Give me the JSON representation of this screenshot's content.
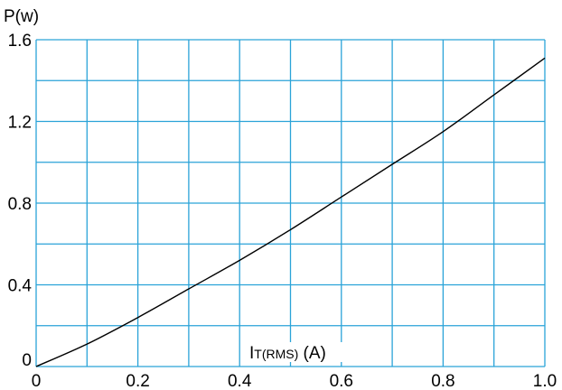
{
  "chart_data": {
    "type": "line",
    "title": "",
    "ylabel": "P(w)",
    "xlabel": {
      "main": "I",
      "sub": "T(RMS)",
      "unit": " (A)"
    },
    "xlim": [
      0,
      1.0
    ],
    "ylim": [
      0,
      1.6
    ],
    "xticks": [
      0,
      0.2,
      0.4,
      0.6,
      0.8,
      1.0
    ],
    "xtick_labels": [
      "0",
      "0.2",
      "0.4",
      "0.6",
      "0.8",
      "1.0"
    ],
    "yticks": [
      0,
      0.4,
      0.8,
      1.2,
      1.6
    ],
    "ytick_labels": [
      "0",
      "0.4",
      "0.8",
      "1.2",
      "1.6"
    ],
    "grid": true,
    "grid_x_step": 0.1,
    "grid_y_step": 0.2,
    "colors": {
      "grid": "#2aa3d8",
      "line": "#000000"
    },
    "series": [
      {
        "x": [
          0,
          0.1,
          0.2,
          0.3,
          0.4,
          0.5,
          0.6,
          0.7,
          0.8,
          0.9,
          1.0
        ],
        "values": [
          0,
          0.11,
          0.24,
          0.38,
          0.52,
          0.67,
          0.83,
          0.99,
          1.15,
          1.33,
          1.51
        ]
      }
    ]
  }
}
